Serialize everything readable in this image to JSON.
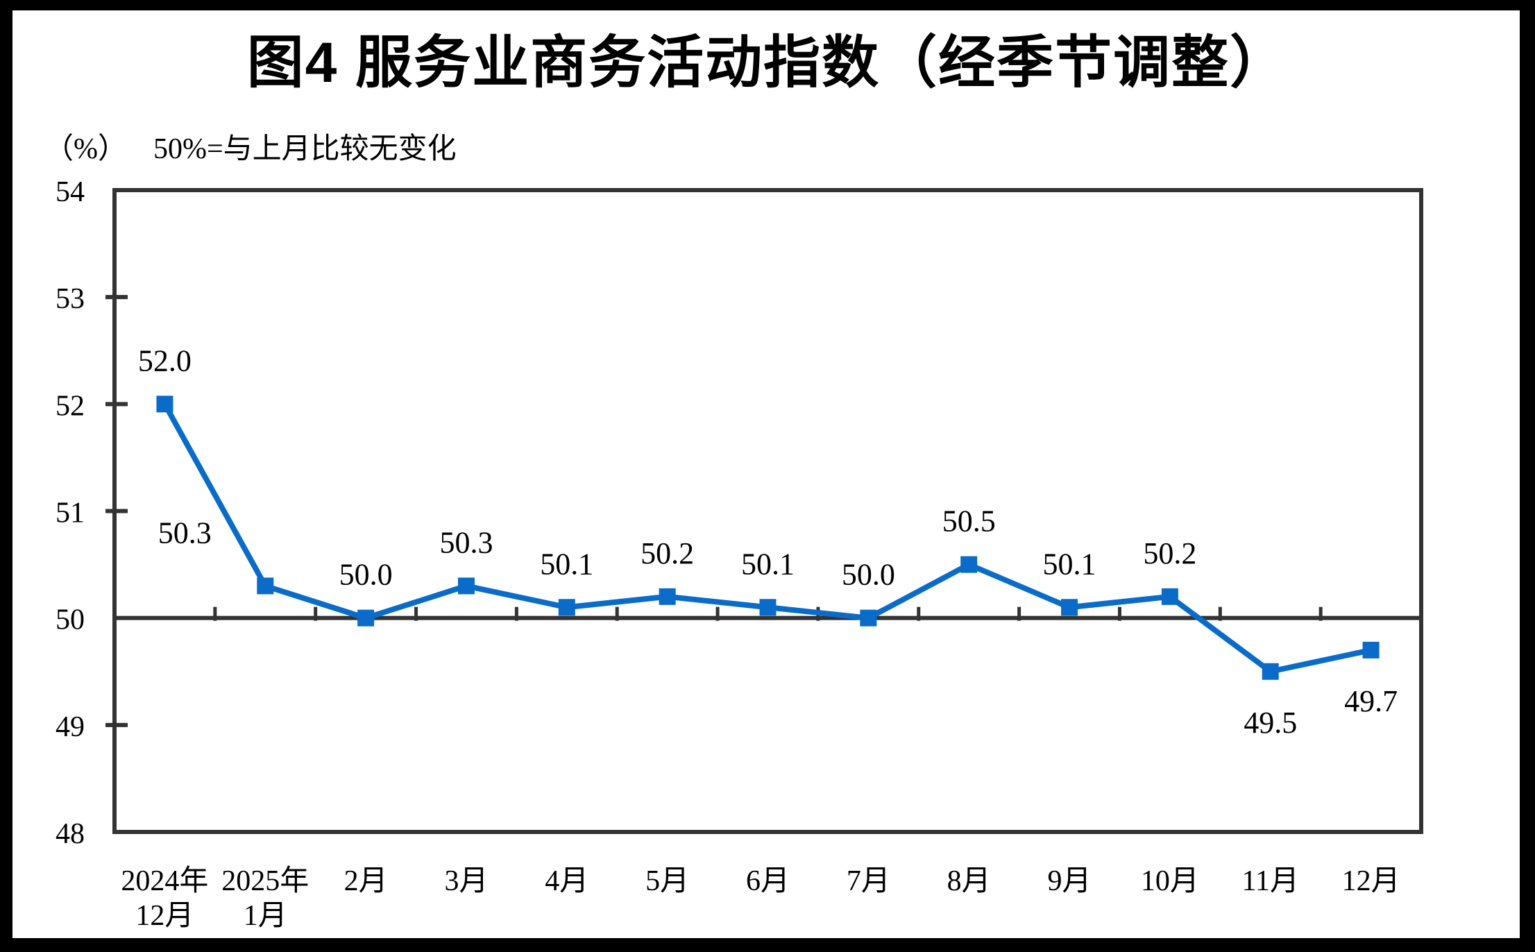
{
  "title": "图4  服务业商务活动指数（经季节调整）",
  "subtitle": {
    "unit": "（%）",
    "note": "50%=与上月比较无变化"
  },
  "chart_data": {
    "type": "line",
    "title": "图4  服务业商务活动指数（经季节调整）",
    "unit_note": "50%=与上月比较无变化",
    "series_name": "服务业商务活动指数（经季节调整）",
    "categories": [
      "2024年|12月",
      "2025年|1月",
      "2月",
      "3月",
      "4月",
      "5月",
      "6月",
      "7月",
      "8月",
      "9月",
      "10月",
      "11月",
      "12月"
    ],
    "values": [
      52.0,
      50.3,
      50.0,
      50.3,
      50.1,
      50.2,
      50.1,
      50.0,
      50.5,
      50.1,
      50.2,
      49.5,
      49.7
    ],
    "data_labels": [
      "52.0",
      "50.3",
      "50.0",
      "50.3",
      "50.1",
      "50.2",
      "50.1",
      "50.0",
      "50.5",
      "50.1",
      "50.2",
      "49.5",
      "49.7"
    ],
    "label_position": [
      "above",
      "above-left",
      "above",
      "above",
      "above",
      "above",
      "above",
      "above",
      "above",
      "above",
      "above",
      "below",
      "below"
    ],
    "ylim": [
      48,
      54
    ],
    "y_ticks": [
      54,
      53,
      52,
      51,
      50,
      49,
      48
    ],
    "baseline_value": 50,
    "grid": false,
    "legend": false,
    "marker": "square",
    "colors": {
      "line": "#0A6CC8",
      "axis": "#333333",
      "text": "#000000",
      "background": "#FFFFFF",
      "frame": "#000000"
    }
  }
}
